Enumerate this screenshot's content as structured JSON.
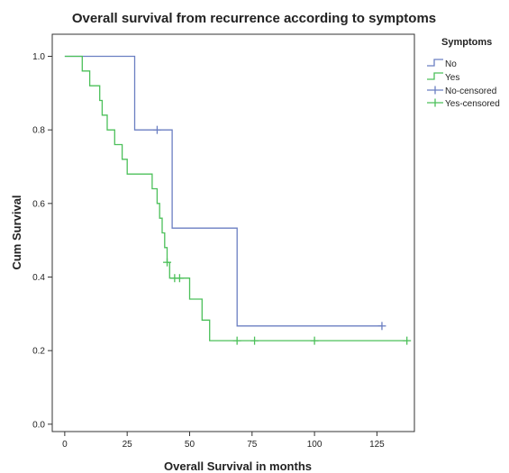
{
  "chart_data": {
    "type": "line",
    "title": "Overall survival from recurrence according to symptoms",
    "xlabel": "Overall Survival in months",
    "ylabel": "Cum Survival",
    "xlim": [
      -5,
      140
    ],
    "ylim": [
      -0.02,
      1.06
    ],
    "x_ticks": [
      "0",
      "25",
      "50",
      "75",
      "100",
      "125"
    ],
    "x_tick_values": [
      0,
      25,
      50,
      75,
      100,
      125
    ],
    "y_ticks": [
      "0.0",
      "0.2",
      "0.4",
      "0.6",
      "0.8",
      "1.0"
    ],
    "y_tick_values": [
      0,
      0.2,
      0.4,
      0.6,
      0.8,
      1.0
    ],
    "grid": false,
    "legend_title": "Symptoms",
    "legend_position": "top-right",
    "legend_entries": [
      "No",
      "Yes",
      "No-censored",
      "Yes-censored"
    ],
    "series": [
      {
        "name": "No",
        "kind": "step",
        "color": "#6b7fc2",
        "points": [
          [
            0,
            1.0
          ],
          [
            28,
            1.0
          ],
          [
            28,
            0.8
          ],
          [
            43,
            0.8
          ],
          [
            43,
            0.533
          ],
          [
            69,
            0.533
          ],
          [
            69,
            0.267
          ],
          [
            127,
            0.267
          ]
        ]
      },
      {
        "name": "Yes",
        "kind": "step",
        "color": "#4cc05a",
        "points": [
          [
            0,
            1.0
          ],
          [
            7,
            1.0
          ],
          [
            7,
            0.96
          ],
          [
            10,
            0.96
          ],
          [
            10,
            0.92
          ],
          [
            14,
            0.92
          ],
          [
            14,
            0.88
          ],
          [
            15,
            0.88
          ],
          [
            15,
            0.84
          ],
          [
            17,
            0.84
          ],
          [
            17,
            0.8
          ],
          [
            20,
            0.8
          ],
          [
            20,
            0.76
          ],
          [
            23,
            0.76
          ],
          [
            23,
            0.72
          ],
          [
            25,
            0.72
          ],
          [
            25,
            0.68
          ],
          [
            35,
            0.68
          ],
          [
            35,
            0.64
          ],
          [
            37,
            0.64
          ],
          [
            37,
            0.6
          ],
          [
            38,
            0.6
          ],
          [
            38,
            0.56
          ],
          [
            39,
            0.56
          ],
          [
            39,
            0.52
          ],
          [
            40,
            0.52
          ],
          [
            40,
            0.48
          ],
          [
            41,
            0.48
          ],
          [
            41,
            0.44
          ],
          [
            42,
            0.44
          ],
          [
            42,
            0.397
          ],
          [
            50,
            0.397
          ],
          [
            50,
            0.34
          ],
          [
            55,
            0.34
          ],
          [
            55,
            0.283
          ],
          [
            58,
            0.283
          ],
          [
            58,
            0.227
          ],
          [
            137,
            0.227
          ]
        ]
      },
      {
        "name": "No-censored",
        "kind": "censor",
        "color": "#6b7fc2",
        "points": [
          [
            37,
            0.8
          ],
          [
            127,
            0.267
          ]
        ]
      },
      {
        "name": "Yes-censored",
        "kind": "censor",
        "color": "#4cc05a",
        "points": [
          [
            41,
            0.44
          ],
          [
            44,
            0.397
          ],
          [
            46,
            0.397
          ],
          [
            69,
            0.227
          ],
          [
            76,
            0.227
          ],
          [
            100,
            0.227
          ],
          [
            137,
            0.227
          ]
        ]
      }
    ]
  }
}
